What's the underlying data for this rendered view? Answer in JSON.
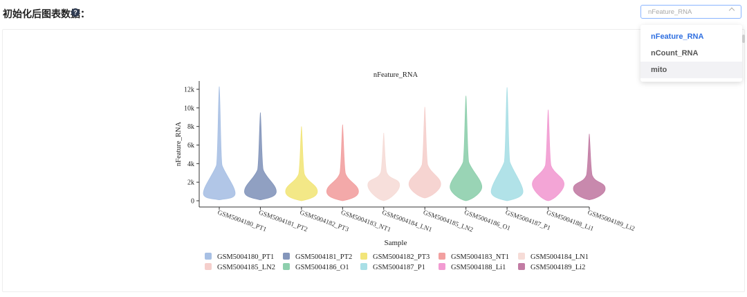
{
  "header": {
    "title": "初始化后图表数据：",
    "help_icon": "?"
  },
  "select": {
    "value": "nFeature_RNA",
    "options": [
      "nFeature_RNA",
      "nCount_RNA",
      "mito"
    ],
    "selected_index": 0,
    "hover_index": 2
  },
  "chart_data": {
    "type": "violin",
    "title": "nFeature_RNA",
    "xlabel": "Sample",
    "ylabel": "nFeature_RNA",
    "ylim": [
      0,
      12300
    ],
    "yticks": [
      0,
      2000,
      4000,
      6000,
      8000,
      10000,
      12000
    ],
    "ytick_labels": [
      "0",
      "2k",
      "4k",
      "6k",
      "8k",
      "10k",
      "12k"
    ],
    "categories": [
      "GSM5004180_PT1",
      "GSM5004181_PT2",
      "GSM5004182_PT3",
      "GSM5004183_NT1",
      "GSM5004184_LN1",
      "GSM5004185_LN2",
      "GSM5004186_O1",
      "GSM5004187_P1",
      "GSM5004188_Li1",
      "GSM5004189_Li2"
    ],
    "colors": [
      "#a8c0e4",
      "#8496bb",
      "#f2e57a",
      "#f2a0a0",
      "#f6dcd7",
      "#f5cfcc",
      "#8ecfad",
      "#a9dfe6",
      "#f29bd2",
      "#c27ca4"
    ],
    "series": [
      {
        "name": "GSM5004180_PT1",
        "min": 100,
        "max": 12300,
        "median": 1000,
        "peak_density_value": 800
      },
      {
        "name": "GSM5004181_PT2",
        "min": 100,
        "max": 9500,
        "median": 1300,
        "peak_density_value": 1000
      },
      {
        "name": "GSM5004182_PT3",
        "min": 0,
        "max": 8000,
        "median": 1200,
        "peak_density_value": 1000
      },
      {
        "name": "GSM5004183_NT1",
        "min": 0,
        "max": 8200,
        "median": 1200,
        "peak_density_value": 1000
      },
      {
        "name": "GSM5004184_LN1",
        "min": 0,
        "max": 7300,
        "median": 1700,
        "peak_density_value": 1700
      },
      {
        "name": "GSM5004185_LN2",
        "min": 300,
        "max": 10100,
        "median": 1800,
        "peak_density_value": 1800
      },
      {
        "name": "GSM5004186_O1",
        "min": 0,
        "max": 11300,
        "median": 1800,
        "peak_density_value": 1500
      },
      {
        "name": "GSM5004187_P1",
        "min": 0,
        "max": 12200,
        "median": 1500,
        "peak_density_value": 1000
      },
      {
        "name": "GSM5004188_Li1",
        "min": 0,
        "max": 9800,
        "median": 1800,
        "peak_density_value": 1800
      },
      {
        "name": "GSM5004189_Li2",
        "min": 100,
        "max": 7200,
        "median": 1300,
        "peak_density_value": 1300
      }
    ],
    "legend_position": "bottom"
  }
}
